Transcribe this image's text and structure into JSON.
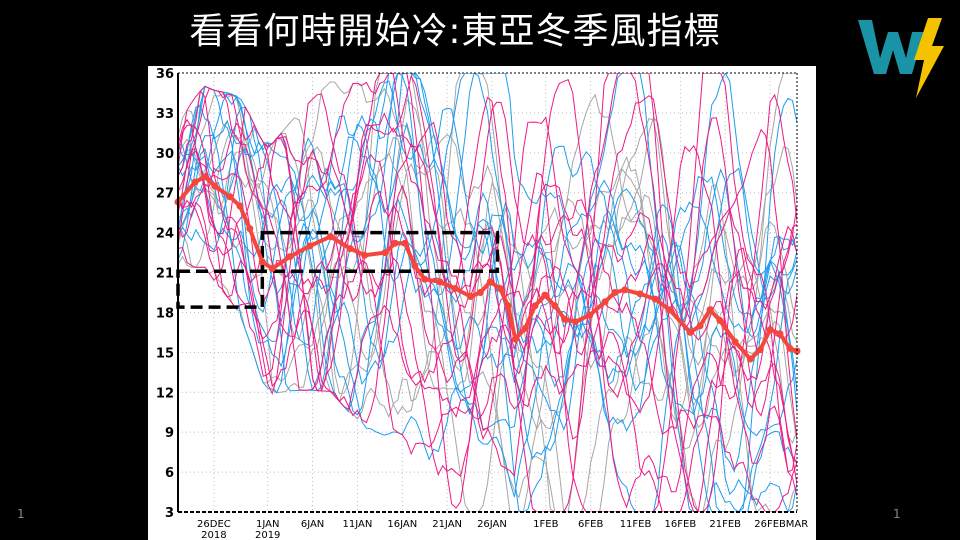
{
  "title": "看看何時開始冷:東亞冬季風指標",
  "page_number_left": "1",
  "page_number_right": "1",
  "logo": {
    "text": "W",
    "colors": {
      "w": "#1a93a6",
      "bolt": "#f5c200"
    }
  },
  "chart_data": {
    "type": "line",
    "title": "",
    "xlabel": "",
    "ylabel": "",
    "x_units": "days since 22 Dec 2018",
    "xlim": [
      0,
      69
    ],
    "ylim": [
      3,
      36
    ],
    "yticks": [
      3,
      6,
      9,
      12,
      15,
      18,
      21,
      24,
      27,
      30,
      33,
      36
    ],
    "xticks": [
      {
        "day": 4,
        "label": "26DEC",
        "sub": "2018"
      },
      {
        "day": 10,
        "label": "1JAN",
        "sub": "2019"
      },
      {
        "day": 15,
        "label": "6JAN"
      },
      {
        "day": 20,
        "label": "11JAN"
      },
      {
        "day": 25,
        "label": "16JAN"
      },
      {
        "day": 30,
        "label": "21JAN"
      },
      {
        "day": 35,
        "label": "26JAN"
      },
      {
        "day": 41,
        "label": "1FEB"
      },
      {
        "day": 46,
        "label": "6FEB"
      },
      {
        "day": 51,
        "label": "11FEB"
      },
      {
        "day": 56,
        "label": "16FEB"
      },
      {
        "day": 61,
        "label": "21FEB"
      },
      {
        "day": 66,
        "label": "26FEB"
      },
      {
        "day": 69,
        "label": "MAR"
      }
    ],
    "grid": true,
    "ensemble": {
      "members_per_color": {
        "blue": 11,
        "pink": 11,
        "gray": 8
      },
      "colors": {
        "blue": "#1e9cf0",
        "pink": "#ee1a84",
        "gray": "#a6a6a6"
      }
    },
    "mean_series": {
      "name": "ensemble mean",
      "color": "#f4463a",
      "x": [
        0,
        1.9,
        3.0,
        4.1,
        5.8,
        6.9,
        8.0,
        9.4,
        10.5,
        12.5,
        14.7,
        17.0,
        19.2,
        20.8,
        23.1,
        24.2,
        25.3,
        26.4,
        27.5,
        29.2,
        30.9,
        32.6,
        33.7,
        34.8,
        35.9,
        36.8,
        37.6,
        38.7,
        39.8,
        40.9,
        42.0,
        43.1,
        44.3,
        45.9,
        47.6,
        48.7,
        49.8,
        51.5,
        53.2,
        54.8,
        57.1,
        58.2,
        59.3,
        60.4,
        62.1,
        63.8,
        64.9,
        66.0,
        67.1,
        68.2,
        69
      ],
      "y": [
        26.3,
        27.8,
        28.2,
        27.5,
        26.7,
        26.0,
        24.3,
        21.8,
        21.3,
        22.2,
        23.0,
        23.7,
        22.8,
        22.3,
        22.5,
        23.2,
        23.2,
        21.5,
        20.5,
        20.3,
        19.8,
        19.2,
        19.5,
        20.3,
        19.8,
        18.5,
        16.0,
        16.8,
        18.5,
        19.3,
        18.5,
        17.5,
        17.3,
        17.8,
        18.8,
        19.5,
        19.7,
        19.4,
        19.0,
        18.2,
        16.5,
        17.0,
        18.2,
        17.4,
        15.8,
        14.5,
        15.2,
        16.7,
        16.4,
        15.3,
        15.1
      ]
    },
    "annotations": [
      {
        "type": "dashed-box",
        "x": [
          0,
          9.4
        ],
        "y": [
          18.4,
          21.1
        ]
      },
      {
        "type": "dashed-box",
        "x": [
          9.4,
          35.6
        ],
        "y": [
          21.1,
          24.0
        ]
      }
    ]
  }
}
